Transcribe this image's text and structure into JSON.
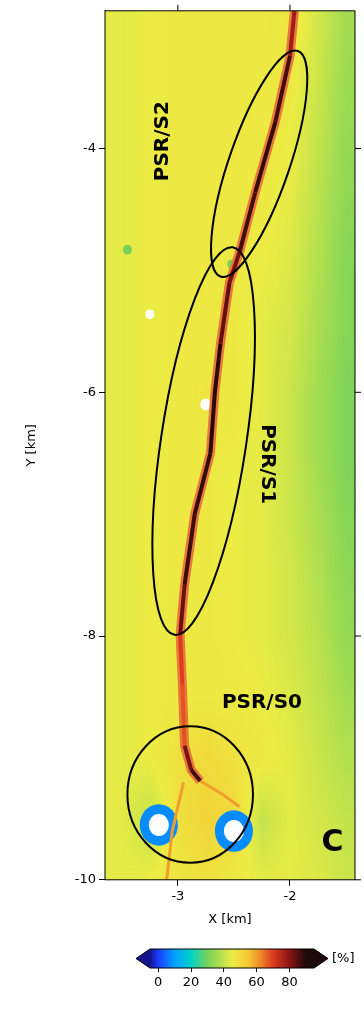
{
  "chart_data": {
    "type": "heatmap",
    "x_label": "X [km]",
    "y_label": "Y [km]",
    "xlim": [
      -3.65,
      -1.42
    ],
    "ylim": [
      -10,
      -2.87
    ],
    "xticks": [
      -3,
      -2
    ],
    "yticks": [
      -4,
      -6,
      -8,
      -10
    ],
    "grid": false,
    "cells": {
      "x": [
        -3.5,
        -3.25,
        -3.0,
        -2.75,
        -2.5,
        -2.25,
        -2.0,
        -1.75,
        -1.5
      ],
      "y": [
        -3.0,
        -3.5,
        -4.0,
        -4.5,
        -5.0,
        -5.5,
        -6.0,
        -6.5,
        -7.0,
        -7.5,
        -8.0,
        -8.5,
        -9.0,
        -9.5,
        -10.0
      ],
      "values": [
        [
          44,
          45,
          46,
          46,
          46,
          46,
          47,
          42,
          36
        ],
        [
          44,
          45,
          46,
          46,
          46,
          46,
          46,
          41,
          35
        ],
        [
          44,
          45,
          46,
          46,
          46,
          46,
          45,
          40,
          34
        ],
        [
          44,
          45,
          46,
          46,
          46,
          46,
          44,
          39,
          33
        ],
        [
          44,
          45,
          46,
          46,
          46,
          45,
          43,
          38,
          32
        ],
        [
          44,
          45,
          46,
          46,
          46,
          44,
          42,
          37,
          32
        ],
        [
          44,
          45,
          46,
          47,
          46,
          44,
          41,
          36,
          31
        ],
        [
          44,
          45,
          46,
          46,
          45,
          44,
          41,
          36,
          31
        ],
        [
          44,
          45,
          46,
          46,
          45,
          44,
          41,
          37,
          32
        ],
        [
          44,
          45,
          46,
          46,
          45,
          44,
          42,
          38,
          33
        ],
        [
          44,
          45,
          46,
          46,
          45,
          44,
          42,
          39,
          34
        ],
        [
          44,
          45,
          46,
          46,
          46,
          45,
          43,
          40,
          36
        ],
        [
          44,
          45,
          48,
          50,
          48,
          46,
          44,
          41,
          38
        ],
        [
          44,
          40,
          48,
          52,
          50,
          40,
          44,
          42,
          40
        ],
        [
          44,
          45,
          47,
          48,
          46,
          44,
          44,
          43,
          41
        ]
      ]
    },
    "fissure": {
      "x": [
        -1.96,
        -2.0,
        -2.13,
        -2.31,
        -2.45,
        -2.54,
        -2.62,
        -2.67,
        -2.71,
        -2.85,
        -2.94,
        -2.98,
        -2.96,
        -2.94,
        -2.88,
        -2.8
      ],
      "y": [
        -2.87,
        -3.24,
        -3.78,
        -4.36,
        -4.85,
        -5.1,
        -5.6,
        -6.0,
        -6.5,
        -7.0,
        -7.58,
        -7.99,
        -8.4,
        -8.9,
        -9.1,
        -9.19
      ],
      "values": [
        70,
        85,
        88,
        88,
        85,
        80,
        88,
        90,
        88,
        88,
        86,
        80,
        60,
        75,
        88,
        85
      ]
    },
    "branches": [
      {
        "x": [
          -2.8,
          -2.6,
          -2.45
        ],
        "y": [
          -9.19,
          -9.3,
          -9.4
        ],
        "value": 60
      },
      {
        "x": [
          -2.95,
          -3.05,
          -3.1
        ],
        "y": [
          -9.2,
          -9.6,
          -10.0
        ],
        "value": 60
      }
    ],
    "spots": [
      {
        "x": -3.17,
        "y": -9.55,
        "value": 8,
        "radius": 0.17
      },
      {
        "x": -3.17,
        "y": -9.55,
        "value": null,
        "radius": 0.09
      },
      {
        "x": -2.5,
        "y": -9.6,
        "value": 8,
        "radius": 0.17
      },
      {
        "x": -2.5,
        "y": -9.6,
        "value": null,
        "radius": 0.09
      },
      {
        "x": -2.75,
        "y": -6.1,
        "value": null,
        "radius": 0.05
      },
      {
        "x": -3.25,
        "y": -5.36,
        "value": null,
        "radius": 0.04
      },
      {
        "x": -3.45,
        "y": -4.83,
        "value": 30,
        "radius": 0.04
      },
      {
        "x": -2.52,
        "y": -4.95,
        "value": 30,
        "radius": 0.04
      }
    ],
    "regions": [
      {
        "label": "PSR/S2",
        "label_x": -3.13,
        "label_y": -3.94,
        "ends": [
          [
            -1.93,
            -3.2
          ],
          [
            -2.62,
            -5.05
          ]
        ],
        "half_width": 0.27
      },
      {
        "label": "PSR/S1",
        "label_x": -2.2,
        "label_y": -6.59,
        "ends": [
          [
            -2.51,
            -4.81
          ],
          [
            -3.03,
            -7.99
          ]
        ],
        "half_width": 0.38
      },
      {
        "label": "PSR/S0",
        "label_x": -2.25,
        "label_y": -8.55,
        "center": [
          -2.89,
          -9.3
        ],
        "radius": 0.56
      }
    ],
    "annotations": [
      {
        "text": "C",
        "x": -1.62,
        "y": -9.7
      }
    ],
    "colorbar": {
      "range": [
        -5,
        95
      ],
      "ticks": [
        0,
        20,
        40,
        60,
        80
      ],
      "label": "[%]"
    }
  }
}
